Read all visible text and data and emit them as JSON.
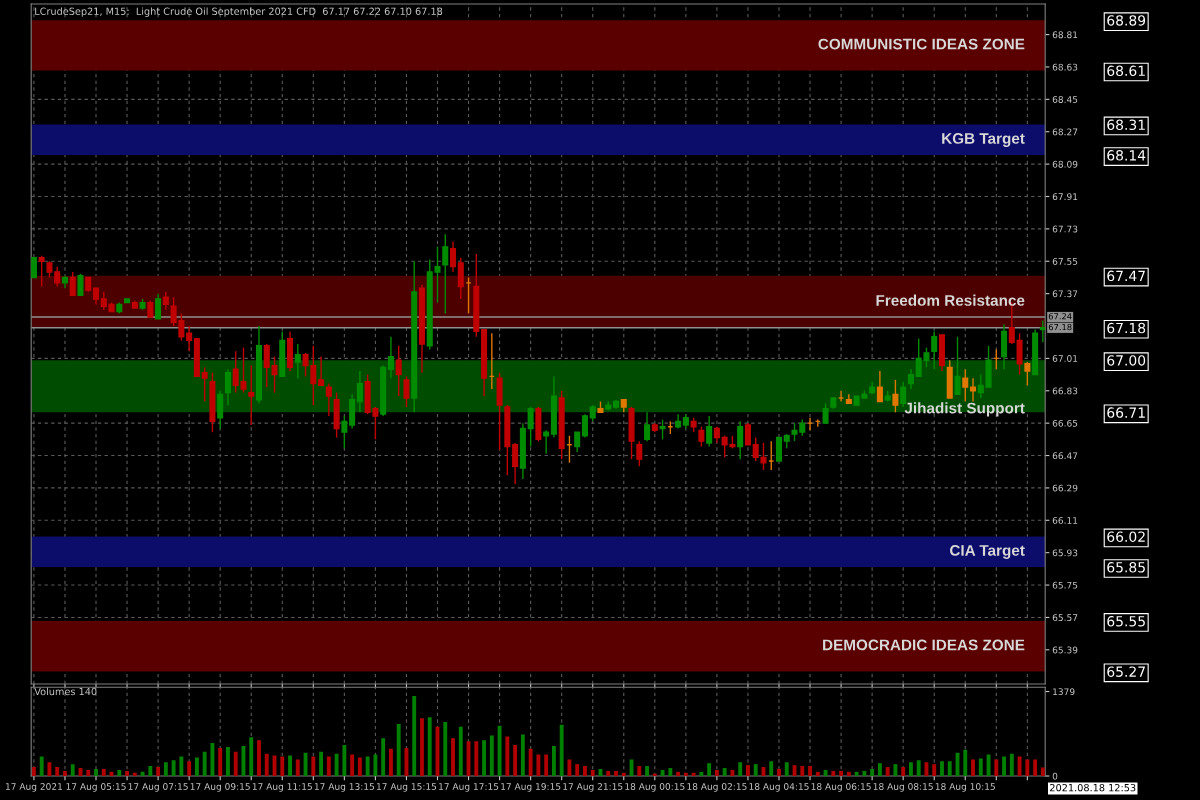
{
  "chart_data": [
    {
      "type": "candlestick",
      "title": "LCrudeSep21, M15:  Light Crude Oil September 2021 CFD  67.17 67.22 67.10 67.18",
      "categories": [
        null,
        null,
        null,
        null,
        null,
        null,
        null,
        null,
        null,
        null,
        null,
        null,
        null,
        null,
        null,
        null,
        null,
        null,
        null,
        null,
        null,
        null,
        null,
        null,
        null,
        null,
        null,
        null,
        null,
        null,
        null,
        null,
        null,
        null,
        null,
        null,
        null,
        null,
        null,
        null,
        null,
        null,
        null,
        null,
        null,
        null,
        null,
        null,
        null,
        null,
        null,
        null,
        null,
        null,
        null,
        null,
        null,
        null,
        null,
        null,
        null,
        null,
        null,
        null,
        null,
        null,
        null,
        null,
        null,
        null,
        null,
        null,
        null,
        null,
        null,
        null,
        null,
        null,
        null,
        null,
        null,
        null,
        null,
        null,
        null,
        null,
        null,
        null,
        null,
        null,
        null,
        null,
        null,
        null,
        null,
        null,
        null,
        null,
        null,
        null,
        null,
        null,
        null,
        null,
        null,
        null,
        null,
        null,
        null,
        null,
        null,
        null,
        null,
        null,
        null,
        null,
        null,
        null,
        null,
        null,
        null,
        null,
        null,
        null,
        null,
        null,
        null,
        null,
        null,
        null,
        null
      ],
      "ohlc": [
        [
          67.46,
          67.57,
          67.46,
          67.57
        ],
        [
          67.57,
          67.58,
          67.41,
          67.55
        ],
        [
          67.54,
          67.55,
          67.46,
          67.49
        ],
        [
          67.49,
          67.52,
          67.41,
          67.43
        ],
        [
          67.43,
          67.47,
          67.4,
          67.46
        ],
        [
          67.46,
          67.49,
          67.36,
          67.36
        ],
        [
          67.36,
          67.48,
          67.36,
          67.47
        ],
        [
          67.46,
          67.46,
          67.38,
          67.39
        ],
        [
          67.4,
          67.4,
          67.31,
          67.34
        ],
        [
          67.34,
          67.38,
          67.28,
          67.3
        ],
        [
          67.31,
          67.32,
          67.27,
          67.27
        ],
        [
          67.27,
          67.32,
          67.26,
          67.31
        ],
        [
          67.32,
          67.34,
          67.32,
          67.34
        ],
        [
          67.32,
          67.33,
          67.29,
          67.29
        ],
        [
          67.29,
          67.34,
          67.28,
          67.32
        ],
        [
          67.32,
          67.33,
          67.24,
          67.24
        ],
        [
          67.23,
          67.37,
          67.23,
          67.34
        ],
        [
          67.35,
          67.38,
          67.28,
          67.31
        ],
        [
          67.3,
          67.35,
          67.19,
          67.21
        ],
        [
          67.22,
          67.26,
          67.11,
          67.13
        ],
        [
          67.15,
          67.19,
          67.05,
          67.11
        ],
        [
          67.12,
          67.12,
          66.91,
          66.91
        ],
        [
          66.93,
          66.96,
          66.77,
          66.9
        ],
        [
          66.88,
          66.93,
          66.6,
          66.66
        ],
        [
          66.68,
          66.83,
          66.62,
          66.81
        ],
        [
          66.82,
          66.95,
          66.75,
          66.93
        ],
        [
          66.95,
          67.05,
          66.82,
          66.86
        ],
        [
          66.88,
          67.07,
          66.82,
          66.84
        ],
        [
          66.82,
          66.97,
          66.64,
          66.8
        ],
        [
          66.78,
          67.19,
          66.76,
          67.08
        ],
        [
          67.08,
          67.09,
          66.85,
          66.96
        ],
        [
          66.97,
          67.02,
          66.82,
          66.92
        ],
        [
          66.91,
          67.16,
          66.91,
          67.11
        ],
        [
          67.12,
          67.16,
          66.94,
          66.96
        ],
        [
          66.99,
          67.09,
          66.9,
          67.03
        ],
        [
          67.03,
          67.04,
          66.91,
          66.97
        ],
        [
          66.97,
          67.08,
          66.75,
          66.87
        ],
        [
          66.89,
          67.02,
          66.86,
          66.86
        ],
        [
          66.85,
          66.87,
          66.69,
          66.8
        ],
        [
          66.78,
          66.82,
          66.57,
          66.62
        ],
        [
          66.6,
          66.69,
          66.51,
          66.66
        ],
        [
          66.64,
          66.81,
          66.62,
          66.78
        ],
        [
          66.77,
          66.94,
          66.71,
          66.87
        ],
        [
          66.88,
          66.92,
          66.7,
          66.71
        ],
        [
          66.73,
          66.74,
          66.56,
          66.69
        ],
        [
          66.7,
          66.97,
          66.69,
          66.96
        ],
        [
          66.95,
          67.13,
          66.9,
          67.02
        ],
        [
          67.0,
          67.08,
          66.8,
          66.92
        ],
        [
          66.89,
          66.91,
          66.74,
          66.79
        ],
        [
          66.79,
          67.55,
          66.71,
          67.38
        ],
        [
          67.4,
          67.42,
          66.93,
          67.09
        ],
        [
          67.08,
          67.56,
          67.06,
          67.49
        ],
        [
          67.49,
          67.63,
          67.32,
          67.52
        ],
        [
          67.53,
          67.7,
          67.26,
          67.63
        ],
        [
          67.62,
          67.66,
          67.49,
          67.52
        ],
        [
          67.54,
          67.57,
          67.34,
          67.41
        ],
        [
          67.43,
          67.46,
          67.26,
          67.43
        ],
        [
          67.41,
          67.59,
          67.13,
          67.16
        ],
        [
          67.17,
          67.17,
          66.8,
          66.9
        ],
        [
          66.91,
          67.15,
          66.84,
          66.91
        ],
        [
          66.9,
          66.93,
          66.5,
          66.75
        ],
        [
          66.74,
          66.75,
          66.36,
          66.52
        ],
        [
          66.53,
          66.54,
          66.31,
          66.41
        ],
        [
          66.4,
          66.65,
          66.34,
          66.62
        ],
        [
          66.62,
          66.74,
          66.52,
          66.73
        ],
        [
          66.73,
          66.74,
          66.55,
          66.56
        ],
        [
          66.58,
          66.61,
          66.48,
          66.6
        ],
        [
          66.59,
          66.91,
          66.57,
          66.8
        ],
        [
          66.79,
          66.83,
          66.45,
          66.51
        ],
        [
          66.53,
          66.58,
          66.43,
          66.53
        ],
        [
          66.52,
          66.6,
          66.49,
          66.6
        ],
        [
          66.58,
          66.7,
          66.57,
          66.69
        ],
        [
          66.68,
          66.75,
          66.66,
          66.74
        ],
        [
          66.73,
          66.77,
          66.71,
          66.71
        ],
        [
          66.73,
          66.77,
          66.72,
          66.75
        ],
        [
          66.74,
          66.78,
          66.73,
          66.77
        ],
        [
          66.78,
          66.78,
          66.71,
          66.74
        ],
        [
          66.73,
          66.74,
          66.45,
          66.55
        ],
        [
          66.53,
          66.55,
          66.41,
          66.45
        ],
        [
          66.56,
          66.71,
          66.55,
          66.64
        ],
        [
          66.64,
          66.65,
          66.6,
          66.61
        ],
        [
          66.62,
          66.67,
          66.56,
          66.63
        ],
        [
          66.63,
          66.66,
          66.59,
          66.63
        ],
        [
          66.63,
          66.7,
          66.62,
          66.66
        ],
        [
          66.64,
          66.7,
          66.62,
          66.68
        ],
        [
          66.66,
          66.68,
          66.6,
          66.63
        ],
        [
          66.61,
          66.63,
          66.52,
          66.55
        ],
        [
          66.54,
          66.69,
          66.52,
          66.63
        ],
        [
          66.62,
          66.63,
          66.54,
          66.57
        ],
        [
          66.57,
          66.58,
          66.46,
          66.53
        ],
        [
          66.53,
          66.58,
          66.51,
          66.52
        ],
        [
          66.52,
          66.66,
          66.45,
          66.63
        ],
        [
          66.64,
          66.65,
          66.53,
          66.53
        ],
        [
          66.53,
          66.57,
          66.44,
          66.46
        ],
        [
          66.46,
          66.54,
          66.39,
          66.43
        ],
        [
          66.44,
          66.55,
          66.39,
          66.44
        ],
        [
          66.44,
          66.57,
          66.44,
          66.57
        ],
        [
          66.55,
          66.59,
          66.51,
          66.58
        ],
        [
          66.59,
          66.65,
          66.55,
          66.61
        ],
        [
          66.6,
          66.67,
          66.58,
          66.65
        ],
        [
          66.65,
          66.68,
          66.61,
          66.65
        ],
        [
          66.66,
          66.67,
          66.63,
          66.66
        ],
        [
          66.65,
          66.76,
          66.65,
          66.73
        ],
        [
          66.74,
          66.79,
          66.73,
          66.79
        ],
        [
          66.79,
          66.83,
          66.77,
          66.79
        ],
        [
          66.78,
          66.81,
          66.76,
          66.76
        ],
        [
          66.75,
          66.8,
          66.75,
          66.8
        ],
        [
          66.79,
          66.83,
          66.79,
          66.81
        ],
        [
          66.82,
          66.88,
          66.81,
          66.85
        ],
        [
          66.85,
          66.94,
          66.77,
          66.77
        ],
        [
          66.78,
          66.83,
          66.77,
          66.8
        ],
        [
          66.81,
          66.89,
          66.71,
          66.75
        ],
        [
          66.76,
          66.88,
          66.74,
          66.85
        ],
        [
          66.87,
          66.95,
          66.84,
          66.92
        ],
        [
          66.91,
          67.12,
          66.91,
          67.01
        ],
        [
          67.0,
          67.07,
          66.96,
          67.04
        ],
        [
          67.05,
          67.16,
          66.95,
          67.13
        ],
        [
          67.14,
          67.14,
          66.94,
          66.97
        ],
        [
          66.96,
          67.0,
          66.79,
          66.79
        ],
        [
          66.81,
          67.13,
          66.81,
          66.91
        ],
        [
          66.9,
          66.95,
          66.77,
          66.85
        ],
        [
          66.85,
          66.9,
          66.77,
          66.83
        ],
        [
          66.82,
          66.92,
          66.79,
          66.86
        ],
        [
          66.85,
          67.08,
          66.85,
          67.0
        ],
        [
          67.01,
          67.06,
          66.95,
          67.01
        ],
        [
          67.02,
          67.2,
          66.95,
          67.16
        ],
        [
          67.18,
          67.32,
          67.09,
          67.1
        ],
        [
          67.11,
          67.15,
          66.92,
          66.98
        ],
        [
          66.98,
          66.99,
          66.86,
          66.94
        ],
        [
          66.92,
          67.17,
          66.92,
          67.15
        ],
        [
          67.17,
          67.22,
          67.1,
          67.18
        ]
      ],
      "colors": [
        "#008c00",
        "#c00000",
        "#c00000",
        "#c00000",
        "#008c00",
        "#c00000",
        "#008c00",
        "#c00000",
        "#c00000",
        "#c00000",
        "#c00000",
        "#008c00",
        "#008c00",
        "#c00000",
        "#008c00",
        "#c00000",
        "#008c00",
        "#c00000",
        "#c00000",
        "#c00000",
        "#c00000",
        "#c00000",
        "#c00000",
        "#c00000",
        "#008c00",
        "#008c00",
        "#c00000",
        "#c00000",
        "#c00000",
        "#008c00",
        "#c00000",
        "#c00000",
        "#008c00",
        "#c00000",
        "#008c00",
        "#c00000",
        "#c00000",
        "#c00000",
        "#c00000",
        "#c00000",
        "#008c00",
        "#008c00",
        "#008c00",
        "#c00000",
        "#c00000",
        "#008c00",
        "#008c00",
        "#c00000",
        "#c00000",
        "#008c00",
        "#c00000",
        "#008c00",
        "#008c00",
        "#008c00",
        "#c00000",
        "#c00000",
        "#e07800",
        "#c00000",
        "#c00000",
        "#e07800",
        "#c00000",
        "#c00000",
        "#c00000",
        "#008c00",
        "#008c00",
        "#c00000",
        "#008c00",
        "#008c00",
        "#c00000",
        "#e07800",
        "#008c00",
        "#008c00",
        "#008c00",
        "#e07800",
        "#008c00",
        "#008c00",
        "#e07800",
        "#c00000",
        "#c00000",
        "#008c00",
        "#c00000",
        "#008c00",
        "#e07800",
        "#008c00",
        "#008c00",
        "#c00000",
        "#c00000",
        "#008c00",
        "#c00000",
        "#c00000",
        "#c00000",
        "#008c00",
        "#c00000",
        "#c00000",
        "#c00000",
        "#e07800",
        "#008c00",
        "#008c00",
        "#008c00",
        "#008c00",
        "#e07800",
        "#e07800",
        "#008c00",
        "#008c00",
        "#e07800",
        "#e07800",
        "#008c00",
        "#008c00",
        "#008c00",
        "#e07800",
        "#008c00",
        "#e07800",
        "#008c00",
        "#008c00",
        "#008c00",
        "#008c00",
        "#008c00",
        "#c00000",
        "#e07800",
        "#008c00",
        "#e07800",
        "#e07800",
        "#008c00",
        "#008c00",
        "#e07800",
        "#008c00",
        "#c00000",
        "#c00000",
        "#e07800",
        "#008c00",
        "#008c00"
      ],
      "ylim": [
        65.2,
        68.98
      ],
      "yticks": [
        68.81,
        68.63,
        68.45,
        68.27,
        68.09,
        67.91,
        67.73,
        67.55,
        67.37,
        67.01,
        66.83,
        66.65,
        66.47,
        66.29,
        66.11,
        65.93,
        65.75,
        65.57,
        65.39
      ],
      "bands": [
        {
          "axis": "y",
          "from": 68.61,
          "to": 68.89,
          "label": "COMMUNISTIC IDEAS ZONE",
          "color": "#5a0000"
        },
        {
          "axis": "y",
          "from": 68.14,
          "to": 68.31,
          "label": "KGB Target",
          "color": "#0c0c6a"
        },
        {
          "axis": "y",
          "from": 67.18,
          "to": 67.47,
          "label": "Freedom Resistance",
          "color": "#4c0000"
        },
        {
          "axis": "y",
          "from": 66.71,
          "to": 67.0,
          "label": "Jihadist Support",
          "color": "#004c00"
        },
        {
          "axis": "y",
          "from": 65.85,
          "to": 66.02,
          "label": "CIA Target",
          "color": "#0c0c6a"
        },
        {
          "axis": "y",
          "from": 65.27,
          "to": 65.55,
          "label": "DEMOCRADIC IDEAS ZONE",
          "color": "#5a0000"
        }
      ],
      "ref_lines": [
        {
          "axis": "y",
          "value": 67.24,
          "label": "67.24",
          "color": "#909090"
        },
        {
          "axis": "y",
          "value": 67.18,
          "label": "67.18",
          "color": "#909090"
        }
      ],
      "y2lim": [
        65.2,
        68.98
      ],
      "y2ticks": [
        68.89,
        68.61,
        68.31,
        68.14,
        67.47,
        67.18,
        {
          "value": 67.0,
          "label": "67.00"
        },
        66.71,
        66.02,
        65.85,
        65.55,
        65.27
      ],
      "grid": true,
      "tick_labels": "y"
    },
    {
      "type": "bar",
      "title": "Volumes 140",
      "categories": [
        "17 Aug 2021",
        null,
        null,
        null,
        null,
        null,
        null,
        null,
        "17 Aug 05:15",
        null,
        null,
        null,
        null,
        null,
        null,
        null,
        "17 Aug 07:15",
        null,
        null,
        null,
        null,
        null,
        null,
        null,
        "17 Aug 09:15",
        null,
        null,
        null,
        null,
        null,
        null,
        null,
        "17 Aug 11:15",
        null,
        null,
        null,
        null,
        null,
        null,
        null,
        "17 Aug 13:15",
        null,
        null,
        null,
        null,
        null,
        null,
        null,
        "17 Aug 15:15",
        null,
        null,
        null,
        null,
        null,
        null,
        null,
        "17 Aug 17:15",
        null,
        null,
        null,
        null,
        null,
        null,
        null,
        "17 Aug 19:15",
        null,
        null,
        null,
        null,
        null,
        null,
        null,
        "17 Aug 21:15",
        null,
        null,
        null,
        null,
        null,
        null,
        null,
        "18 Aug 00:15",
        null,
        null,
        null,
        null,
        null,
        null,
        null,
        "18 Aug 02:15",
        null,
        null,
        null,
        null,
        null,
        null,
        null,
        "18 Aug 04:15",
        null,
        null,
        null,
        null,
        null,
        null,
        null,
        "18 Aug 06:15",
        null,
        null,
        null,
        null,
        null,
        null,
        null,
        "18 Aug 08:15",
        null,
        null,
        null,
        null,
        null,
        null,
        null,
        "18 Aug 10:15",
        null,
        null,
        null,
        null,
        null,
        null,
        null,
        null,
        null,
        null
      ],
      "values": [
        146,
        318,
        224,
        146,
        83,
        193,
        130,
        99,
        115,
        115,
        68,
        99,
        83,
        52,
        68,
        162,
        146,
        224,
        256,
        318,
        240,
        303,
        397,
        538,
        459,
        475,
        397,
        491,
        632,
        585,
        365,
        334,
        318,
        334,
        271,
        381,
        318,
        397,
        318,
        365,
        506,
        350,
        303,
        318,
        350,
        616,
        444,
        851,
        459,
        1305,
        945,
        960,
        804,
        882,
        616,
        804,
        569,
        569,
        585,
        663,
        820,
        647,
        506,
        679,
        444,
        350,
        350,
        491,
        835,
        271,
        193,
        162,
        99,
        115,
        83,
        83,
        52,
        271,
        162,
        162,
        37,
        99,
        130,
        68,
        52,
        52,
        68,
        209,
        99,
        130,
        99,
        224,
        177,
        193,
        146,
        240,
        115,
        224,
        177,
        162,
        162,
        68,
        99,
        83,
        83,
        68,
        68,
        83,
        115,
        209,
        146,
        193,
        146,
        224,
        256,
        224,
        193,
        240,
        240,
        381,
        428,
        271,
        287,
        350,
        271,
        318,
        365,
        318,
        271,
        271,
        140
      ],
      "colors": [
        "#b00000",
        "#008000",
        "#b00000",
        "#b00000",
        "#b00000",
        "#008000",
        "#b00000",
        "#b00000",
        "#008000",
        "#b00000",
        "#b00000",
        "#008000",
        "#b00000",
        "#b00000",
        "#008000",
        "#008000",
        "#b00000",
        "#008000",
        "#008000",
        "#008000",
        "#b00000",
        "#008000",
        "#008000",
        "#008000",
        "#b00000",
        "#008000",
        "#b00000",
        "#008000",
        "#008000",
        "#b00000",
        "#b00000",
        "#b00000",
        "#b00000",
        "#008000",
        "#b00000",
        "#008000",
        "#b00000",
        "#008000",
        "#b00000",
        "#008000",
        "#008000",
        "#b00000",
        "#b00000",
        "#008000",
        "#008000",
        "#008000",
        "#b00000",
        "#008000",
        "#b00000",
        "#008000",
        "#b00000",
        "#008000",
        "#b00000",
        "#008000",
        "#b00000",
        "#008000",
        "#b00000",
        "#b00000",
        "#008000",
        "#008000",
        "#008000",
        "#b00000",
        "#b00000",
        "#008000",
        "#b00000",
        "#b00000",
        "#b00000",
        "#008000",
        "#008000",
        "#b00000",
        "#b00000",
        "#b00000",
        "#b00000",
        "#008000",
        "#b00000",
        "#b00000",
        "#b00000",
        "#008000",
        "#b00000",
        "#008000",
        "#b00000",
        "#008000",
        "#008000",
        "#b00000",
        "#b00000",
        "#b00000",
        "#008000",
        "#008000",
        "#b00000",
        "#008000",
        "#b00000",
        "#008000",
        "#b00000",
        "#008000",
        "#b00000",
        "#008000",
        "#b00000",
        "#008000",
        "#b00000",
        "#b00000",
        "#b00000",
        "#b00000",
        "#008000",
        "#b00000",
        "#b00000",
        "#b00000",
        "#008000",
        "#008000",
        "#008000",
        "#008000",
        "#b00000",
        "#008000",
        "#b00000",
        "#008000",
        "#008000",
        "#b00000",
        "#b00000",
        "#008000",
        "#008000",
        "#008000",
        "#008000",
        "#b00000",
        "#008000",
        "#008000",
        "#b00000",
        "#008000",
        "#008000",
        "#b00000",
        "#b00000",
        "#b00000",
        "#b00000"
      ],
      "ylim": [
        0,
        1450
      ],
      "yticks": [
        0,
        1379
      ],
      "annotations": [
        "2021.08.18 12:53"
      ],
      "grid": "x"
    }
  ]
}
